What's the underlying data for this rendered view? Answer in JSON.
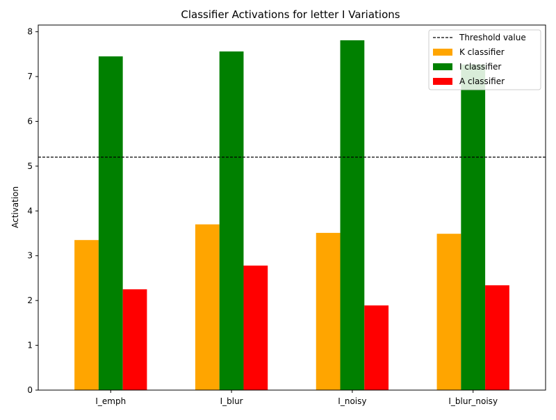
{
  "chart_data": {
    "type": "bar",
    "title": "Classifier Activations for letter I Variations",
    "xlabel": "",
    "ylabel": "Activation",
    "categories": [
      "I_emph",
      "I_blur",
      "I_noisy",
      "I_blur_noisy"
    ],
    "series": [
      {
        "name": "K classifier",
        "color": "#ffa500",
        "values": [
          3.35,
          3.7,
          3.51,
          3.49
        ]
      },
      {
        "name": "I classifier",
        "color": "#008000",
        "values": [
          7.45,
          7.56,
          7.81,
          7.27
        ]
      },
      {
        "name": "A classifier",
        "color": "#ff0000",
        "values": [
          2.25,
          2.78,
          1.89,
          2.34
        ]
      }
    ],
    "threshold": {
      "name": "Threshold value",
      "value": 5.2,
      "color": "#000000",
      "style": "dashed"
    },
    "ylim": [
      0,
      8.15
    ],
    "yticks": [
      0,
      1,
      2,
      3,
      4,
      5,
      6,
      7,
      8
    ],
    "grid": false,
    "legend_position": "top-right"
  }
}
